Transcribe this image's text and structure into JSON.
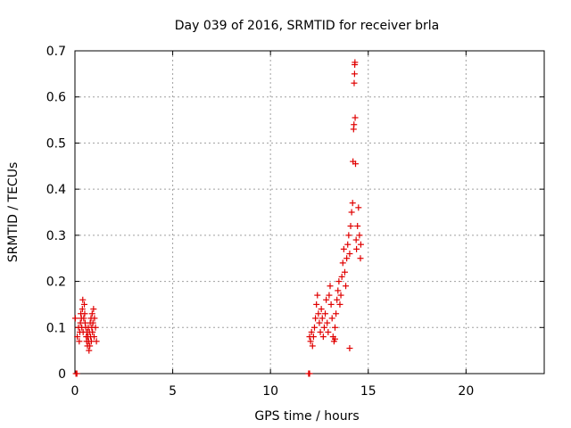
{
  "chart_data": {
    "type": "scatter",
    "title": "Day 039 of 2016, SRMTID for receiver brla",
    "xlabel": "GPS time / hours",
    "ylabel": "SRMTID / TECUs",
    "xlim": [
      0,
      24
    ],
    "ylim": [
      0,
      0.7
    ],
    "xticks": [
      0,
      5,
      10,
      15,
      20
    ],
    "yticks": [
      0,
      0.1,
      0.2,
      0.3,
      0.4,
      0.5,
      0.6,
      0.7
    ],
    "ytick_labels": [
      "0",
      "0.1",
      "0.2",
      "0.3",
      "0.4",
      "0.5",
      "0.6",
      "0.7"
    ],
    "grid": true,
    "marker": "+",
    "series": [
      {
        "name": "SRMTID",
        "color": "#e00000",
        "points": [
          [
            0.05,
            0.0
          ],
          [
            0.1,
            0.0
          ],
          [
            0.02,
            0.12
          ],
          [
            0.12,
            0.08
          ],
          [
            0.18,
            0.1
          ],
          [
            0.22,
            0.07
          ],
          [
            0.25,
            0.09
          ],
          [
            0.28,
            0.11
          ],
          [
            0.3,
            0.13
          ],
          [
            0.33,
            0.12
          ],
          [
            0.35,
            0.1
          ],
          [
            0.38,
            0.14
          ],
          [
            0.4,
            0.16
          ],
          [
            0.42,
            0.09
          ],
          [
            0.45,
            0.12
          ],
          [
            0.48,
            0.15
          ],
          [
            0.5,
            0.13
          ],
          [
            0.52,
            0.11
          ],
          [
            0.55,
            0.1
          ],
          [
            0.58,
            0.08
          ],
          [
            0.6,
            0.07
          ],
          [
            0.62,
            0.09
          ],
          [
            0.64,
            0.06
          ],
          [
            0.66,
            0.08
          ],
          [
            0.68,
            0.1
          ],
          [
            0.7,
            0.07
          ],
          [
            0.72,
            0.05
          ],
          [
            0.74,
            0.09
          ],
          [
            0.76,
            0.06
          ],
          [
            0.78,
            0.11
          ],
          [
            0.8,
            0.08
          ],
          [
            0.82,
            0.12
          ],
          [
            0.84,
            0.07
          ],
          [
            0.86,
            0.1
          ],
          [
            0.88,
            0.13
          ],
          [
            0.9,
            0.09
          ],
          [
            0.92,
            0.11
          ],
          [
            0.95,
            0.14
          ],
          [
            0.98,
            0.08
          ],
          [
            1.0,
            0.12
          ],
          [
            1.05,
            0.1
          ],
          [
            1.1,
            0.07
          ],
          [
            11.95,
            0.0
          ],
          [
            12.0,
            0.0
          ],
          [
            12.0,
            0.08
          ],
          [
            12.05,
            0.07
          ],
          [
            12.1,
            0.09
          ],
          [
            12.15,
            0.06
          ],
          [
            12.2,
            0.08
          ],
          [
            12.25,
            0.1
          ],
          [
            12.3,
            0.12
          ],
          [
            12.35,
            0.15
          ],
          [
            12.4,
            0.17
          ],
          [
            12.45,
            0.13
          ],
          [
            12.5,
            0.11
          ],
          [
            12.55,
            0.09
          ],
          [
            12.6,
            0.14
          ],
          [
            12.65,
            0.12
          ],
          [
            12.7,
            0.08
          ],
          [
            12.75,
            0.1
          ],
          [
            12.8,
            0.13
          ],
          [
            12.85,
            0.16
          ],
          [
            12.9,
            0.11
          ],
          [
            12.95,
            0.09
          ],
          [
            13.0,
            0.17
          ],
          [
            13.05,
            0.19
          ],
          [
            13.1,
            0.15
          ],
          [
            13.15,
            0.12
          ],
          [
            13.2,
            0.08
          ],
          [
            13.25,
            0.07
          ],
          [
            13.3,
            0.1
          ],
          [
            13.35,
            0.13
          ],
          [
            13.4,
            0.16
          ],
          [
            13.45,
            0.18
          ],
          [
            13.5,
            0.2
          ],
          [
            13.55,
            0.15
          ],
          [
            13.6,
            0.17
          ],
          [
            13.65,
            0.21
          ],
          [
            13.7,
            0.24
          ],
          [
            13.75,
            0.27
          ],
          [
            13.8,
            0.22
          ],
          [
            13.85,
            0.19
          ],
          [
            13.9,
            0.25
          ],
          [
            13.95,
            0.28
          ],
          [
            14.0,
            0.3
          ],
          [
            14.05,
            0.26
          ],
          [
            14.1,
            0.32
          ],
          [
            14.15,
            0.35
          ],
          [
            14.2,
            0.37
          ],
          [
            14.22,
            0.46
          ],
          [
            14.25,
            0.53
          ],
          [
            14.27,
            0.54
          ],
          [
            14.28,
            0.63
          ],
          [
            14.3,
            0.65
          ],
          [
            14.31,
            0.67
          ],
          [
            14.32,
            0.675
          ],
          [
            14.33,
            0.555
          ],
          [
            14.35,
            0.455
          ],
          [
            14.38,
            0.29
          ],
          [
            14.4,
            0.27
          ],
          [
            14.45,
            0.32
          ],
          [
            14.5,
            0.36
          ],
          [
            14.55,
            0.3
          ],
          [
            14.6,
            0.25
          ],
          [
            14.62,
            0.28
          ],
          [
            14.05,
            0.055
          ],
          [
            13.3,
            0.075
          ]
        ]
      }
    ]
  }
}
